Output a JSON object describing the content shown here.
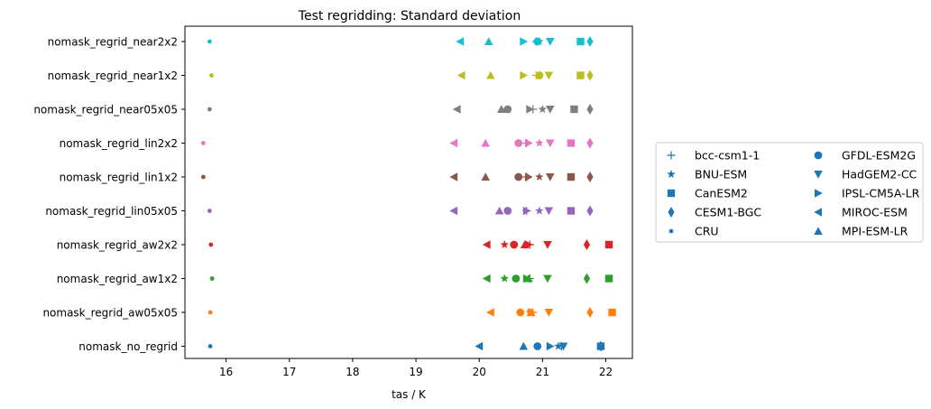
{
  "chart_data": {
    "type": "scatter",
    "title": "Test regridding: Standard deviation",
    "xlabel": "tas / K",
    "ylabel": "",
    "xlim": [
      15.35,
      22.42
    ],
    "xticks": [
      16,
      17,
      18,
      19,
      20,
      21,
      22
    ],
    "grid": false,
    "legend_position": "right",
    "categories": [
      "nomask_no_regrid",
      "nomask_regrid_aw05x05",
      "nomask_regrid_aw1x2",
      "nomask_regrid_aw2x2",
      "nomask_regrid_lin05x05",
      "nomask_regrid_lin1x2",
      "nomask_regrid_lin2x2",
      "nomask_regrid_near05x05",
      "nomask_regrid_near1x2",
      "nomask_regrid_near2x2"
    ],
    "category_colors": [
      "#1f77b4",
      "#ff7f0e",
      "#2ca02c",
      "#d62728",
      "#9467bd",
      "#8c564b",
      "#e377c2",
      "#7f7f7f",
      "#bcbd22",
      "#17becf"
    ],
    "series": [
      {
        "name": "bcc-csm1-1",
        "marker": "plus",
        "values": [
          21.3,
          20.85,
          20.8,
          20.8,
          20.75,
          20.75,
          20.75,
          20.85,
          20.9,
          20.9
        ]
      },
      {
        "name": "BNU-ESM",
        "marker": "star",
        "values": [
          21.25,
          20.8,
          20.4,
          20.4,
          20.95,
          20.95,
          20.95,
          21.0,
          20.95,
          20.95
        ]
      },
      {
        "name": "CanESM2",
        "marker": "square",
        "values": [
          21.92,
          22.1,
          22.05,
          22.05,
          21.45,
          21.45,
          21.45,
          21.5,
          21.6,
          21.6
        ]
      },
      {
        "name": "CESM1-BGC",
        "marker": "diamond",
        "values": [
          21.92,
          21.75,
          21.7,
          21.7,
          21.75,
          21.75,
          21.75,
          21.75,
          21.75,
          21.75
        ]
      },
      {
        "name": "CRU",
        "marker": "dot",
        "values": [
          15.75,
          15.75,
          15.78,
          15.76,
          15.74,
          15.64,
          15.64,
          15.74,
          15.77,
          15.74
        ]
      },
      {
        "name": "GFDL-ESM2G",
        "marker": "circle",
        "values": [
          20.92,
          20.65,
          20.58,
          20.55,
          20.45,
          20.62,
          20.62,
          20.45,
          20.95,
          20.92
        ]
      },
      {
        "name": "HadGEM2-CC",
        "marker": "triangle-down",
        "values": [
          21.33,
          21.1,
          21.08,
          21.08,
          21.1,
          21.12,
          21.12,
          21.12,
          21.1,
          21.12
        ]
      },
      {
        "name": "IPSL-CM5A-LR",
        "marker": "triangle-right",
        "values": [
          21.12,
          20.82,
          20.75,
          20.78,
          20.75,
          20.78,
          20.78,
          20.8,
          20.7,
          20.7
        ]
      },
      {
        "name": "MIROC-ESM",
        "marker": "triangle-left",
        "values": [
          20.0,
          20.18,
          20.12,
          20.12,
          19.6,
          19.6,
          19.6,
          19.65,
          19.72,
          19.7
        ]
      },
      {
        "name": "MPI-ESM-LR",
        "marker": "triangle-up",
        "values": [
          20.7,
          20.82,
          20.78,
          20.72,
          20.32,
          20.1,
          20.1,
          20.35,
          20.18,
          20.15
        ]
      }
    ]
  }
}
